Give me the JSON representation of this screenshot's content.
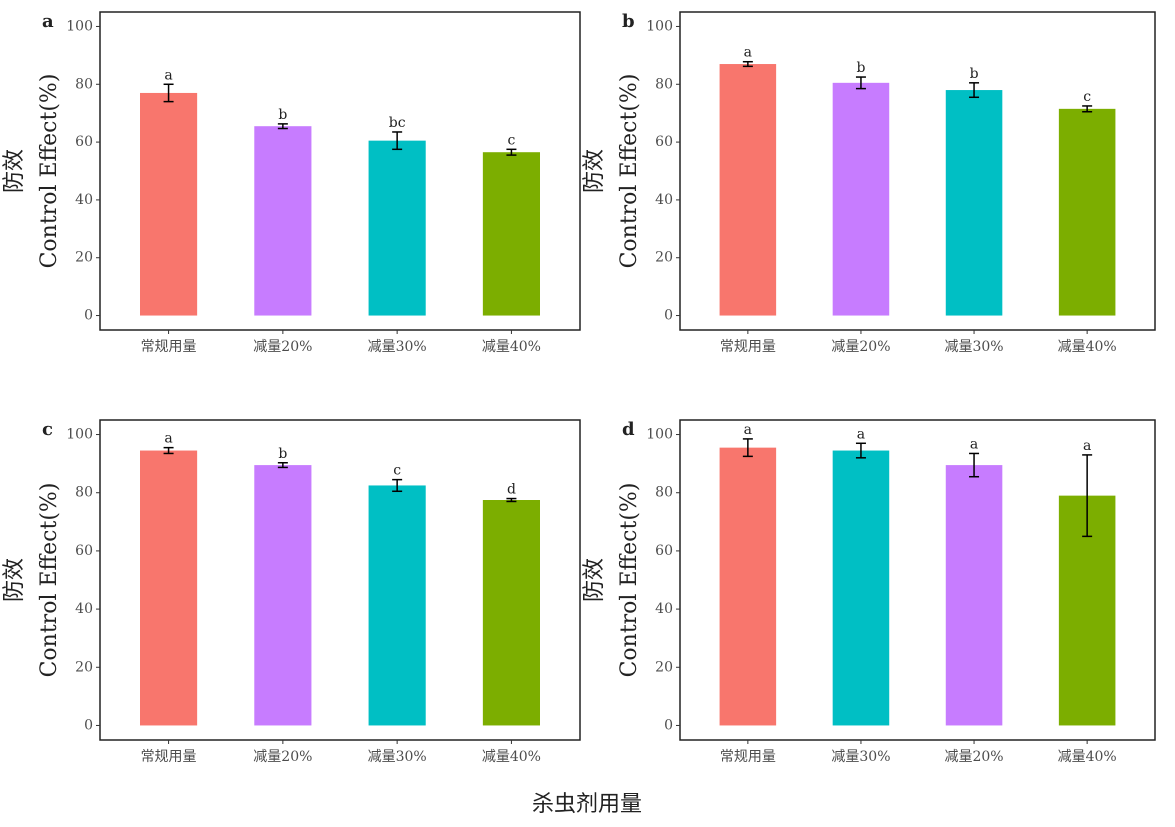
{
  "chart_data": [
    {
      "type": "bar",
      "panel": "a",
      "ylabel": [
        "防效",
        "Control Effect(%)"
      ],
      "categories": [
        "常规用量",
        "减量20%",
        "减量30%",
        "减量40%"
      ],
      "values": [
        77,
        65.5,
        60.5,
        56.5
      ],
      "errors": [
        3,
        0.8,
        3,
        1
      ],
      "annotations": [
        "a",
        "b",
        "bc",
        "c"
      ],
      "colors": [
        "#f8766d",
        "#c77cff",
        "#00bfc4",
        "#7cae00"
      ],
      "ylim": [
        -5,
        105
      ],
      "yticks": [
        0,
        20,
        40,
        60,
        80,
        100
      ]
    },
    {
      "type": "bar",
      "panel": "b",
      "ylabel": [
        "防效",
        "Control Effect(%)"
      ],
      "categories": [
        "常规用量",
        "减量20%",
        "减量30%",
        "减量40%"
      ],
      "values": [
        87,
        80.5,
        78,
        71.5
      ],
      "errors": [
        0.8,
        2,
        2.5,
        1
      ],
      "annotations": [
        "a",
        "b",
        "b",
        "c"
      ],
      "colors": [
        "#f8766d",
        "#c77cff",
        "#00bfc4",
        "#7cae00"
      ],
      "ylim": [
        -5,
        105
      ],
      "yticks": [
        0,
        20,
        40,
        60,
        80,
        100
      ]
    },
    {
      "type": "bar",
      "panel": "c",
      "ylabel": [
        "防效",
        "Control Effect(%)"
      ],
      "categories": [
        "常规用量",
        "减量20%",
        "减量30%",
        "减量40%"
      ],
      "values": [
        94.5,
        89.5,
        82.5,
        77.5
      ],
      "errors": [
        1,
        0.8,
        2,
        0.5
      ],
      "annotations": [
        "a",
        "b",
        "c",
        "d"
      ],
      "colors": [
        "#f8766d",
        "#c77cff",
        "#00bfc4",
        "#7cae00"
      ],
      "ylim": [
        -5,
        105
      ],
      "yticks": [
        0,
        20,
        40,
        60,
        80,
        100
      ]
    },
    {
      "type": "bar",
      "panel": "d",
      "ylabel": [
        "防效",
        "Control Effect(%)"
      ],
      "categories": [
        "常规用量",
        "减量30%",
        "减量20%",
        "减量40%"
      ],
      "values": [
        95.5,
        94.5,
        89.5,
        79
      ],
      "errors": [
        3,
        2.5,
        4,
        14
      ],
      "annotations": [
        "a",
        "a",
        "a",
        "a"
      ],
      "colors": [
        "#f8766d",
        "#00bfc4",
        "#c77cff",
        "#7cae00"
      ],
      "ylim": [
        -5,
        105
      ],
      "yticks": [
        0,
        20,
        40,
        60,
        80,
        100
      ]
    }
  ],
  "xlabel": "杀虫剂用量"
}
